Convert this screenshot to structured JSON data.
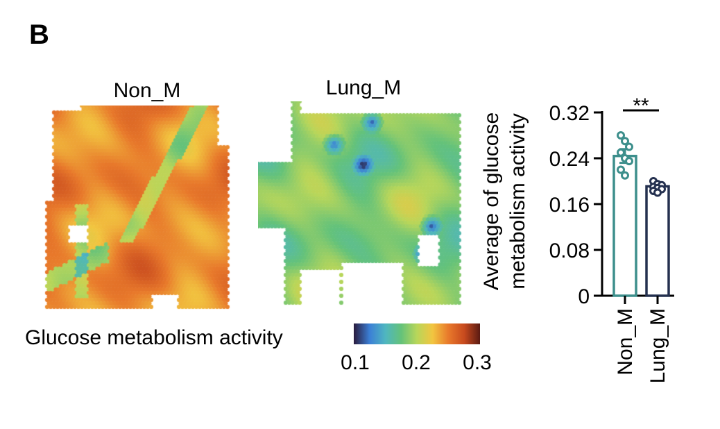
{
  "panel_label": "B",
  "maps": [
    {
      "title": "Non_M"
    },
    {
      "title": "Lung_M"
    }
  ],
  "colorbar": {
    "label": "Glucose metabolism activity",
    "ticks": [
      "0.1",
      "0.2",
      "0.3"
    ],
    "colors": [
      "#2a1b3d",
      "#3b7fd6",
      "#4fb6c0",
      "#64c27a",
      "#b8d65a",
      "#f2c540",
      "#e8792b",
      "#c84a1e",
      "#5a1a12"
    ]
  },
  "chart_data": {
    "type": "bar",
    "categories": [
      "Non_M",
      "Lung_M"
    ],
    "values": [
      0.244,
      0.191
    ],
    "errors": [
      0.012,
      0.004
    ],
    "points": [
      [
        0.28,
        0.27,
        0.26,
        0.25,
        0.24,
        0.235,
        0.22,
        0.21
      ],
      [
        0.2,
        0.195,
        0.193,
        0.19,
        0.188,
        0.186,
        0.183,
        0.18
      ]
    ],
    "ylabel_lines": [
      "Average of glucose",
      "metabolism activity"
    ],
    "yticks": [
      0,
      0.08,
      0.16,
      0.24,
      0.32
    ],
    "ytick_labels": [
      "0",
      "0.08",
      "0.16",
      "0.24",
      "0.32"
    ],
    "ylim": [
      0,
      0.32
    ],
    "significance": "**",
    "colors": [
      "#3d8f8c",
      "#24304f"
    ]
  }
}
